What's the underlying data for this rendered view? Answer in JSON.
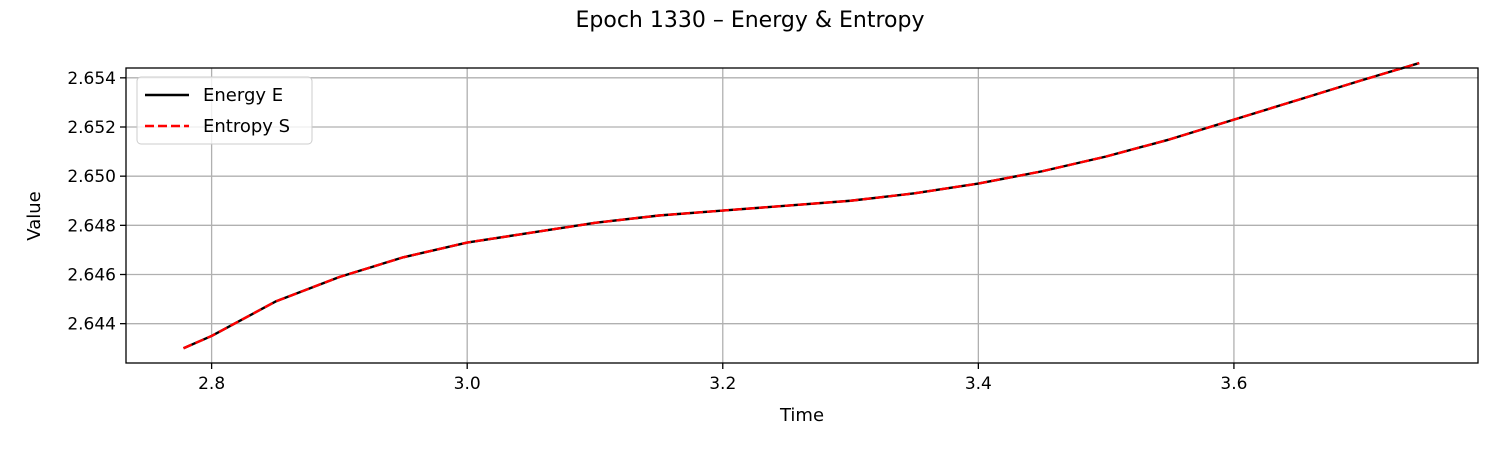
{
  "chart_data": {
    "type": "line",
    "title": "Epoch 1330 – Energy & Entropy",
    "xlabel": "Time",
    "ylabel": "Value",
    "xlim": [
      2.733,
      3.791
    ],
    "ylim": [
      2.6424,
      2.6544
    ],
    "x_ticks": [
      2.8,
      3.0,
      3.2,
      3.4,
      3.6
    ],
    "x_tick_labels": [
      "2.8",
      "3.0",
      "3.2",
      "3.4",
      "3.6"
    ],
    "y_ticks": [
      2.644,
      2.646,
      2.648,
      2.65,
      2.652,
      2.654
    ],
    "y_tick_labels": [
      "2.644",
      "2.646",
      "2.648",
      "2.650",
      "2.652",
      "2.654"
    ],
    "grid": true,
    "legend": {
      "position": "top-left"
    },
    "x": [
      2.778,
      2.8,
      2.85,
      2.9,
      2.95,
      3.0,
      3.05,
      3.1,
      3.15,
      3.2,
      3.25,
      3.3,
      3.35,
      3.4,
      3.45,
      3.5,
      3.55,
      3.6,
      3.65,
      3.7,
      3.745
    ],
    "series": [
      {
        "name": "Energy E",
        "color": "#000000",
        "style": "solid",
        "values": [
          2.643,
          2.6435,
          2.6449,
          2.6459,
          2.6467,
          2.6473,
          2.6477,
          2.6481,
          2.6484,
          2.6486,
          2.6488,
          2.649,
          2.6493,
          2.6497,
          2.6502,
          2.6508,
          2.6515,
          2.6523,
          2.6531,
          2.6539,
          2.6546
        ]
      },
      {
        "name": "Entropy S",
        "color": "#ff0000",
        "style": "dashed",
        "values": [
          2.643,
          2.6435,
          2.6449,
          2.6459,
          2.6467,
          2.6473,
          2.6477,
          2.6481,
          2.6484,
          2.6486,
          2.6488,
          2.649,
          2.6493,
          2.6497,
          2.6502,
          2.6508,
          2.6515,
          2.6523,
          2.6531,
          2.6539,
          2.6546
        ]
      }
    ]
  }
}
